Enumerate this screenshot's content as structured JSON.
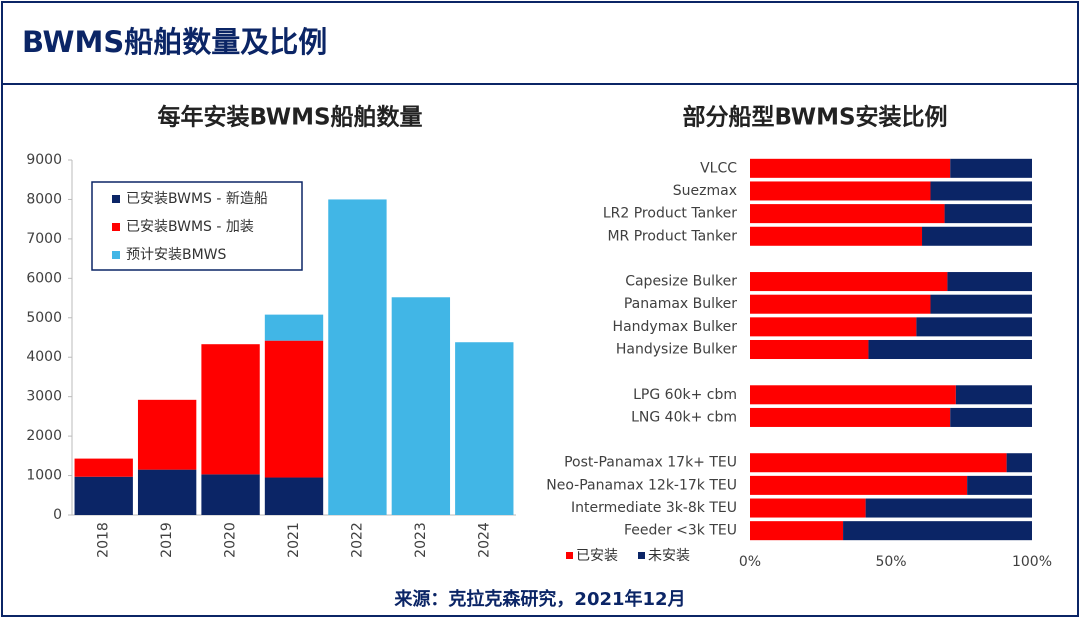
{
  "header": {
    "title": "BWMS船舶数量及比例"
  },
  "chart_data": [
    {
      "type": "bar",
      "stacked": true,
      "title": "每年安装BWMS船舶数量",
      "categories": [
        "2018",
        "2019",
        "2020",
        "2021",
        "2022",
        "2023",
        "2024"
      ],
      "series": [
        {
          "name": "已安装BWMS - 新造船",
          "color": "#0b2566",
          "values": [
            970,
            1150,
            1030,
            950,
            0,
            0,
            0
          ]
        },
        {
          "name": "已安装BWMS - 加装",
          "color": "#ff0000",
          "values": [
            460,
            1770,
            3300,
            3470,
            0,
            0,
            0
          ]
        },
        {
          "name": "预计安装BMWS",
          "color": "#41b6e6",
          "values": [
            0,
            0,
            0,
            660,
            8000,
            5520,
            4380
          ]
        }
      ],
      "ylim": [
        0,
        9000
      ],
      "yticks": [
        0,
        1000,
        2000,
        3000,
        4000,
        5000,
        6000,
        7000,
        8000,
        9000
      ],
      "legend": "upper left",
      "grid": false
    },
    {
      "type": "hbar",
      "stacked": true,
      "title": "部分船型BWMS安装比例",
      "categories": [
        "VLCC",
        "Suezmax",
        "LR2 Product Tanker",
        "MR Product Tanker",
        null,
        "Capesize Bulker",
        "Panamax Bulker",
        "Handymax Bulker",
        "Handysize Bulker",
        null,
        "LPG 60k+ cbm",
        "LNG 40k+ cbm",
        null,
        "Post-Panamax 17k+ TEU",
        "Neo-Panamax 12k-17k TEU",
        "Intermediate 3k-8k TEU",
        "Feeder <3k TEU"
      ],
      "series": [
        {
          "name": "已安装",
          "color": "#ff0000",
          "values": [
            71,
            64,
            69,
            61,
            null,
            70,
            64,
            59,
            42,
            null,
            73,
            71,
            null,
            91,
            77,
            41,
            33
          ]
        },
        {
          "name": "未安装",
          "color": "#0b2566",
          "values": [
            29,
            36,
            31,
            39,
            null,
            30,
            36,
            41,
            58,
            null,
            27,
            29,
            null,
            9,
            23,
            59,
            67
          ]
        }
      ],
      "xlim": [
        0,
        100
      ],
      "xticks": [
        {
          "value": 0,
          "label": "0%"
        },
        {
          "value": 50,
          "label": "50%"
        },
        {
          "value": 100,
          "label": "100%"
        }
      ],
      "legend": "lower left",
      "grid": false
    }
  ],
  "footer": {
    "source": "来源：克拉克森研究，2021年12月"
  }
}
